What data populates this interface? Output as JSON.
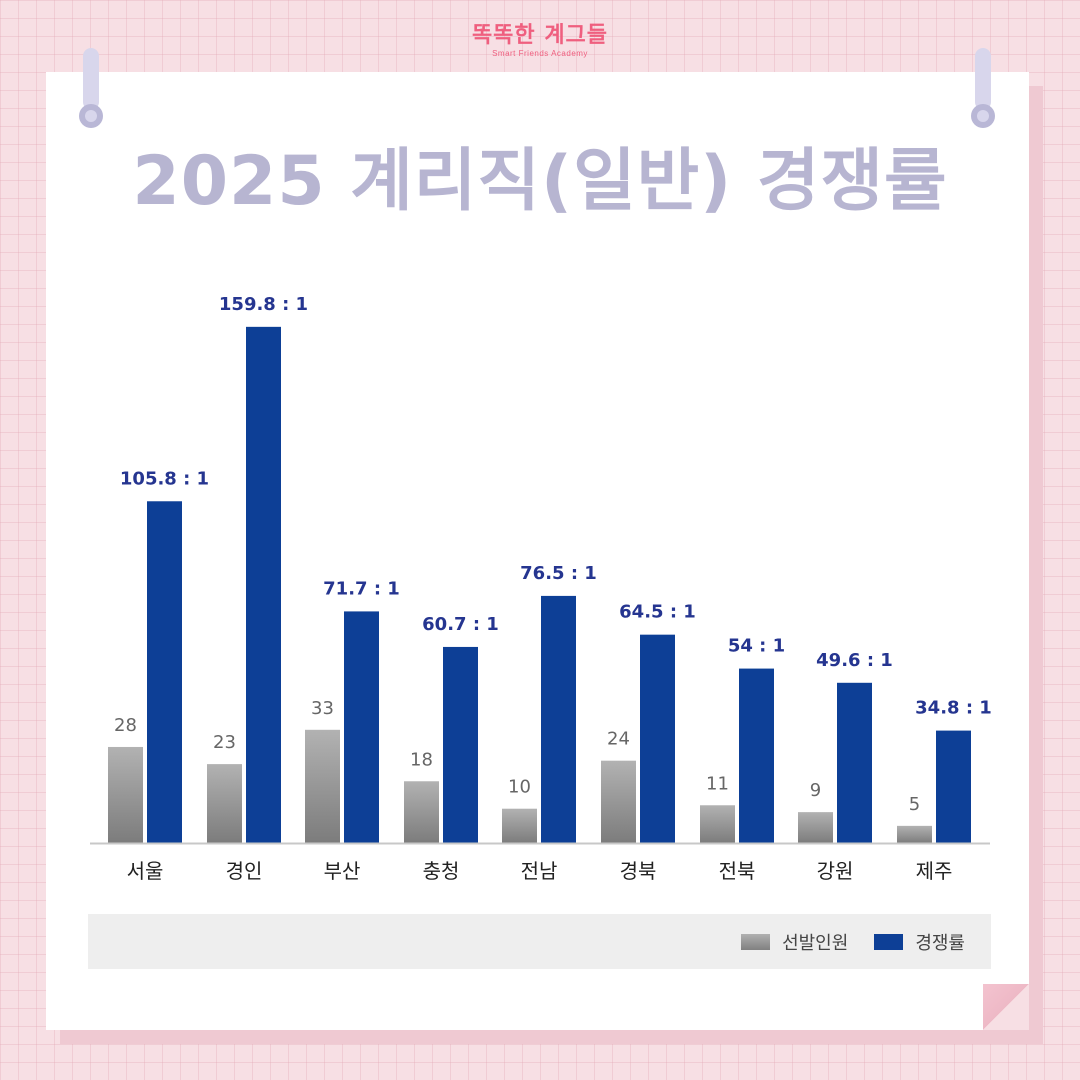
{
  "logo": {
    "main": "똑똑한 계그들",
    "sub": "Smart Friends Academy"
  },
  "title": "2025 계리직(일반) 경쟁률",
  "colors": {
    "selection": "#9a9a9a",
    "competition": "#0d3f96",
    "competition_label": "#253590",
    "title": "#b7b5d1"
  },
  "chart_data": {
    "type": "bar",
    "title": "2025 계리직(일반) 경쟁률",
    "categories": [
      "서울",
      "경인",
      "부산",
      "충청",
      "전남",
      "경북",
      "전북",
      "강원",
      "제주"
    ],
    "series": [
      {
        "name": "선발인원",
        "values": [
          28,
          23,
          33,
          18,
          10,
          24,
          11,
          9,
          5
        ],
        "labels": [
          "28",
          "23",
          "33",
          "18",
          "10",
          "24",
          "11",
          "9",
          "5"
        ]
      },
      {
        "name": "경쟁률",
        "values": [
          105.8,
          159.8,
          71.7,
          60.7,
          76.5,
          64.5,
          54,
          49.6,
          34.8
        ],
        "labels": [
          "105.8 : 1",
          "159.8 : 1",
          "71.7 : 1",
          "60.7 : 1",
          "76.5 : 1",
          "64.5 : 1",
          "54 : 1",
          "49.6 : 1",
          "34.8 : 1"
        ]
      }
    ],
    "legend_position": "bottom-right",
    "grid": false
  }
}
